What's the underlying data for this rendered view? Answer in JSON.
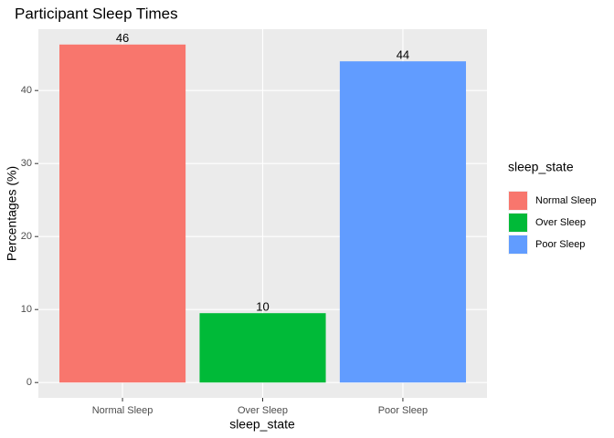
{
  "chart_data": {
    "type": "bar",
    "title": "Participant Sleep Times",
    "x_label": "sleep_state",
    "y_label": "Percentages (%)",
    "categories": [
      "Normal Sleep",
      "Over Sleep",
      "Poor Sleep"
    ],
    "values": [
      46.3,
      9.5,
      44.0
    ],
    "value_labels": [
      "46",
      "10",
      "44"
    ],
    "colors": [
      "#F8766D",
      "#00BA38",
      "#619CFF"
    ],
    "legend_title": "sleep_state",
    "legend": "right",
    "ylim": [
      -2.1,
      48.4
    ],
    "yticks": [
      0,
      10,
      20,
      30,
      40
    ],
    "grid": true
  }
}
